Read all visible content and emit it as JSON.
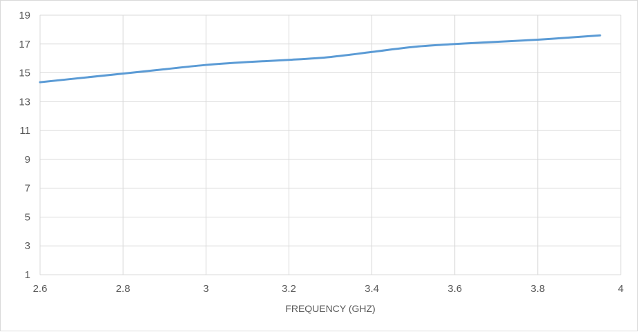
{
  "chart_data": {
    "type": "line",
    "title": "",
    "xlabel": "FREQUENCY (GHZ)",
    "ylabel": "",
    "xlim": [
      2.6,
      4
    ],
    "ylim": [
      1,
      19
    ],
    "xticks": [
      2.6,
      2.8,
      3,
      3.2,
      3.4,
      3.6,
      3.8,
      4
    ],
    "xtick_labels": [
      "2.6",
      "2.8",
      "3",
      "3.2",
      "3.4",
      "3.6",
      "3.8",
      "4"
    ],
    "yticks": [
      1,
      3,
      5,
      7,
      9,
      11,
      13,
      15,
      17,
      19
    ],
    "ytick_labels": [
      "1",
      "3",
      "5",
      "7",
      "9",
      "11",
      "13",
      "15",
      "17",
      "19"
    ],
    "grid": true,
    "series": [
      {
        "color": "#5b9bd5",
        "x": [
          2.6,
          2.7,
          2.8,
          2.9,
          3.0,
          3.1,
          3.2,
          3.3,
          3.4,
          3.5,
          3.6,
          3.7,
          3.8,
          3.9,
          3.95
        ],
        "y": [
          14.35,
          14.65,
          14.95,
          15.25,
          15.55,
          15.75,
          15.9,
          16.1,
          16.45,
          16.8,
          17.0,
          17.15,
          17.3,
          17.5,
          17.6
        ]
      }
    ]
  }
}
